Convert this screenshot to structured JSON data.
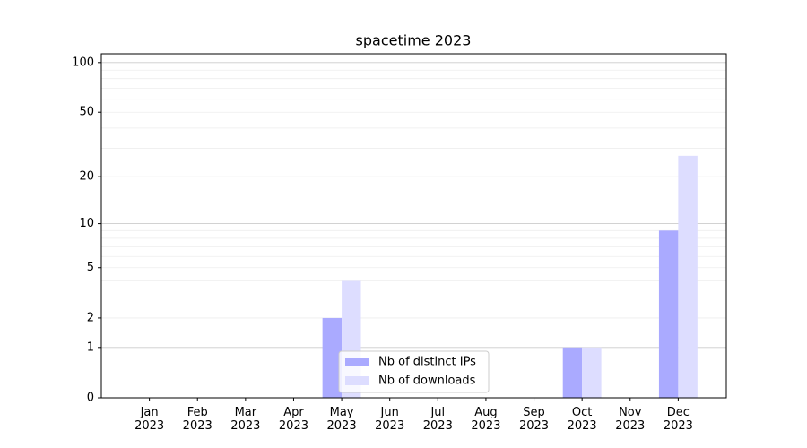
{
  "chart_data": {
    "type": "bar",
    "title": "spacetime 2023",
    "categories": [
      "Jan\n2023",
      "Feb\n2023",
      "Mar\n2023",
      "Apr\n2023",
      "May\n2023",
      "Jun\n2023",
      "Jul\n2023",
      "Aug\n2023",
      "Sep\n2023",
      "Oct\n2023",
      "Nov\n2023",
      "Dec\n2023"
    ],
    "series": [
      {
        "name": "Nb of distinct IPs",
        "color": "#aaaaff",
        "values": [
          0,
          0,
          0,
          0,
          2,
          0,
          0,
          0,
          0,
          1,
          0,
          9
        ]
      },
      {
        "name": "Nb of downloads",
        "color": "#ddddff",
        "values": [
          0,
          0,
          0,
          0,
          4,
          0,
          0,
          0,
          0,
          1,
          0,
          27
        ]
      }
    ],
    "yscale": "log1p",
    "ylim": [
      0,
      113
    ],
    "yticks": [
      0,
      1,
      2,
      5,
      10,
      20,
      50,
      100
    ],
    "minor_yticks": [
      3,
      4,
      6,
      7,
      8,
      9,
      30,
      40,
      60,
      70,
      80,
      90
    ],
    "grid": true,
    "legend": "lower center"
  }
}
